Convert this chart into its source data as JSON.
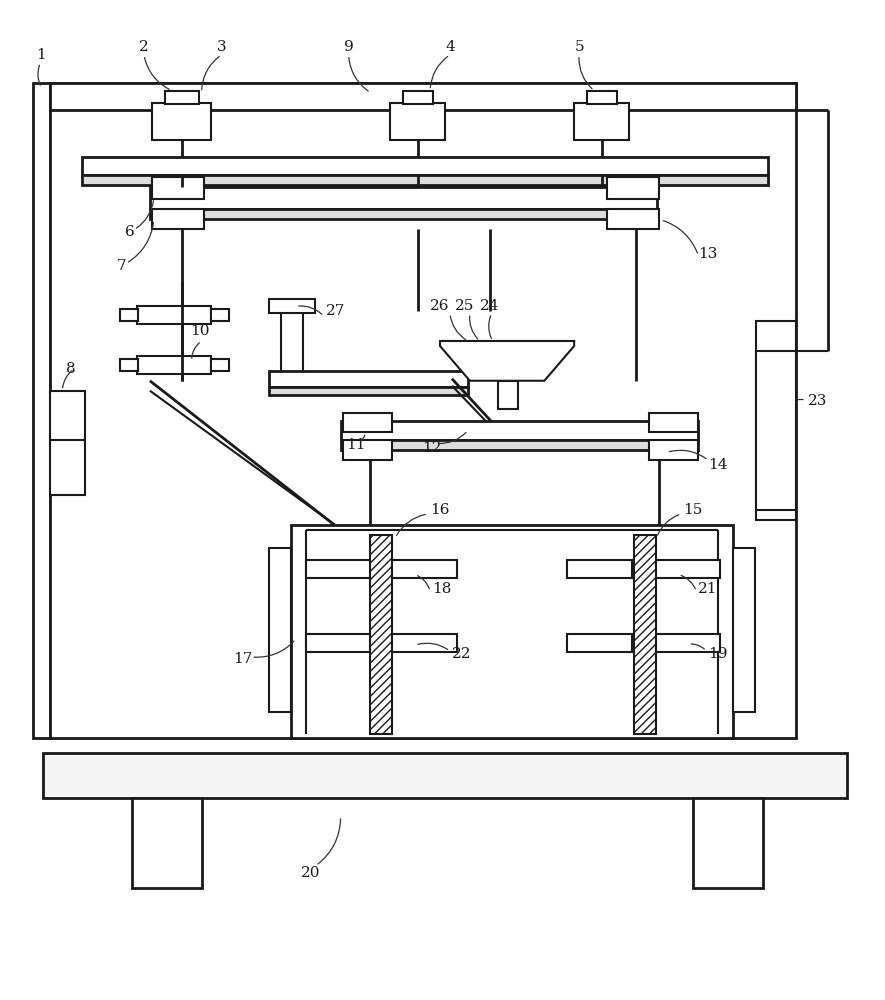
{
  "bg": "#ffffff",
  "lc": "#1a1a1a",
  "figure_size": [
    8.85,
    10.0
  ],
  "dpi": 100
}
